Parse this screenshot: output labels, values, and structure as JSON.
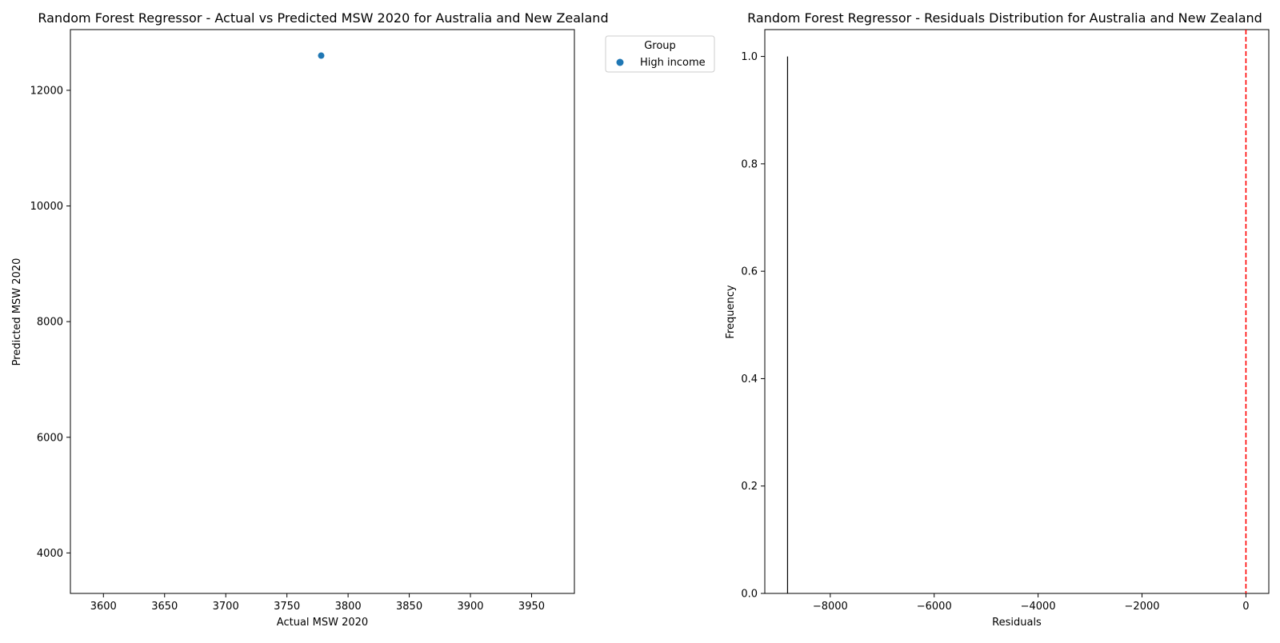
{
  "chart_data": [
    {
      "type": "scatter",
      "title": "Random Forest Regressor - Actual vs Predicted MSW 2020 for Australia and New Zealand",
      "xlabel": "Actual MSW 2020",
      "ylabel": "Predicted MSW 2020",
      "xlim": [
        3573,
        3985
      ],
      "ylim": [
        3300,
        13050
      ],
      "xticks": [
        3600,
        3650,
        3700,
        3750,
        3800,
        3850,
        3900,
        3950
      ],
      "yticks": [
        4000,
        6000,
        8000,
        10000,
        12000
      ],
      "series": [
        {
          "name": "High income",
          "color": "#1f77b4",
          "points": [
            {
              "x": 3778,
              "y": 12600
            }
          ]
        }
      ],
      "legend": {
        "title": "Group",
        "placement": "outside-top-right"
      },
      "grid": false
    },
    {
      "type": "bar",
      "title": "Random Forest Regressor - Residuals Distribution for Australia and New Zealand",
      "xlabel": "Residuals",
      "ylabel": "Frequency",
      "xlim": [
        -9260,
        440
      ],
      "ylim": [
        0,
        1.05
      ],
      "xticks": [
        -8000,
        -6000,
        -4000,
        -2000,
        0
      ],
      "xtick_labels": [
        "−8000",
        "−6000",
        "−4000",
        "−2000",
        "0"
      ],
      "yticks": [
        0.0,
        0.2,
        0.4,
        0.6,
        0.8,
        1.0
      ],
      "ytick_labels": [
        "0.0",
        "0.2",
        "0.4",
        0.6,
        "0.8",
        "1.0"
      ],
      "bins": [
        {
          "x": -8822,
          "count": 1
        }
      ],
      "reference_line": {
        "x": 0,
        "color": "#ff0000",
        "style": "dashed"
      },
      "grid": false
    }
  ]
}
